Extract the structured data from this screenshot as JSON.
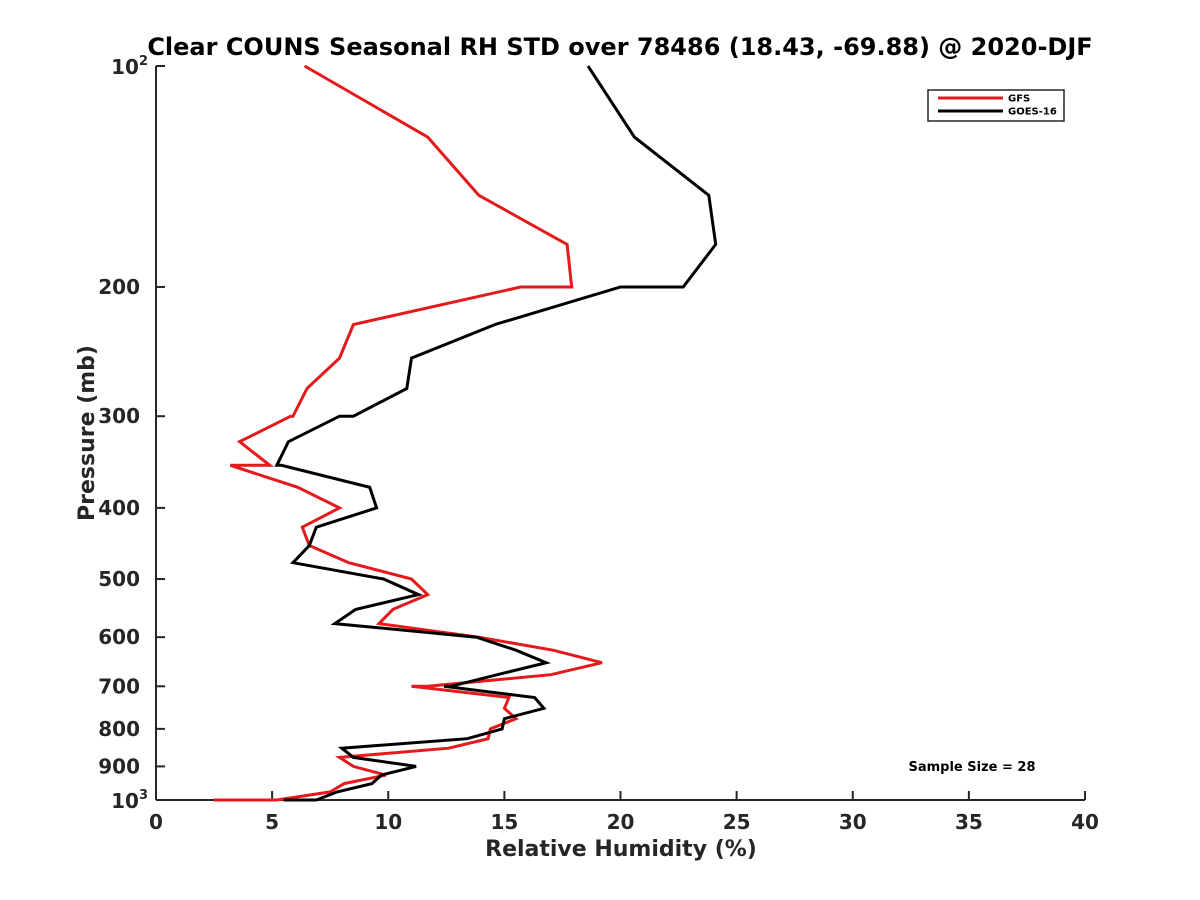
{
  "chart_data": {
    "type": "line",
    "title": "Clear COUNS Seasonal RH STD over 78486 (18.43, -69.88) @ 2020-DJF",
    "xlabel": "Relative Humidity (%)",
    "ylabel": "Pressure (mb)",
    "xlim": [
      0,
      40
    ],
    "ylim": [
      100,
      1000
    ],
    "y_scale": "log",
    "y_reversed": true,
    "x_ticks": [
      0,
      5,
      10,
      15,
      20,
      25,
      30,
      35,
      40
    ],
    "x_tick_labels": [
      "0",
      "5",
      "10",
      "15",
      "20",
      "25",
      "30",
      "35",
      "40"
    ],
    "y_ticks": [
      {
        "value": 100,
        "base": "10",
        "exp": "2"
      },
      {
        "value": 200,
        "label": "200"
      },
      {
        "value": 300,
        "label": "300"
      },
      {
        "value": 400,
        "label": "400"
      },
      {
        "value": 500,
        "label": "500"
      },
      {
        "value": 600,
        "label": "600"
      },
      {
        "value": 700,
        "label": "700"
      },
      {
        "value": 800,
        "label": "800"
      },
      {
        "value": 900,
        "label": "900"
      },
      {
        "value": 1000,
        "base": "10",
        "exp": "3"
      }
    ],
    "legend": {
      "position": "top-right"
    },
    "annotation": "Sample Size = 28",
    "series": [
      {
        "name": "GFS",
        "color": "#e41a1c",
        "points": [
          [
            6.4,
            100
          ],
          [
            11.7,
            125
          ],
          [
            13.9,
            150
          ],
          [
            17.7,
            175
          ],
          [
            17.9,
            200
          ],
          [
            15.7,
            200
          ],
          [
            8.5,
            225
          ],
          [
            7.9,
            250
          ],
          [
            6.5,
            275
          ],
          [
            5.9,
            300
          ],
          [
            5.8,
            300
          ],
          [
            3.6,
            325
          ],
          [
            4.9,
            350
          ],
          [
            3.2,
            350
          ],
          [
            6.1,
            375
          ],
          [
            7.9,
            400
          ],
          [
            6.3,
            425
          ],
          [
            6.6,
            450
          ],
          [
            8.3,
            475
          ],
          [
            11.0,
            500
          ],
          [
            11.7,
            525
          ],
          [
            10.2,
            550
          ],
          [
            9.6,
            575
          ],
          [
            13.9,
            600
          ],
          [
            17.1,
            625
          ],
          [
            19.2,
            650
          ],
          [
            17.0,
            675
          ],
          [
            11.7,
            700
          ],
          [
            11.0,
            700
          ],
          [
            15.2,
            725
          ],
          [
            15.0,
            750
          ],
          [
            15.5,
            775
          ],
          [
            14.4,
            800
          ],
          [
            14.3,
            825
          ],
          [
            12.6,
            850
          ],
          [
            7.9,
            875
          ],
          [
            8.5,
            900
          ],
          [
            9.9,
            925
          ],
          [
            8.1,
            950
          ],
          [
            7.5,
            975
          ],
          [
            5.2,
            1000
          ],
          [
            2.5,
            1000
          ]
        ]
      },
      {
        "name": "GOES-16",
        "color": "#000000",
        "points": [
          [
            18.6,
            100
          ],
          [
            20.6,
            125
          ],
          [
            23.8,
            150
          ],
          [
            24.1,
            175
          ],
          [
            22.7,
            200
          ],
          [
            20.0,
            200
          ],
          [
            14.6,
            225
          ],
          [
            11.0,
            250
          ],
          [
            10.8,
            275
          ],
          [
            8.5,
            300
          ],
          [
            7.9,
            300
          ],
          [
            5.7,
            325
          ],
          [
            5.2,
            350
          ],
          [
            5.4,
            350
          ],
          [
            9.2,
            375
          ],
          [
            9.5,
            400
          ],
          [
            6.9,
            425
          ],
          [
            6.6,
            450
          ],
          [
            5.9,
            475
          ],
          [
            9.8,
            500
          ],
          [
            11.3,
            525
          ],
          [
            8.6,
            550
          ],
          [
            7.7,
            575
          ],
          [
            13.8,
            600
          ],
          [
            15.5,
            625
          ],
          [
            16.8,
            650
          ],
          [
            14.7,
            675
          ],
          [
            12.7,
            700
          ],
          [
            12.4,
            700
          ],
          [
            16.3,
            725
          ],
          [
            16.7,
            750
          ],
          [
            15.0,
            775
          ],
          [
            14.9,
            800
          ],
          [
            13.4,
            825
          ],
          [
            8.0,
            850
          ],
          [
            8.5,
            875
          ],
          [
            11.2,
            900
          ],
          [
            9.7,
            925
          ],
          [
            9.3,
            950
          ],
          [
            7.8,
            975
          ],
          [
            6.9,
            1000
          ],
          [
            5.5,
            1000
          ]
        ]
      }
    ]
  }
}
